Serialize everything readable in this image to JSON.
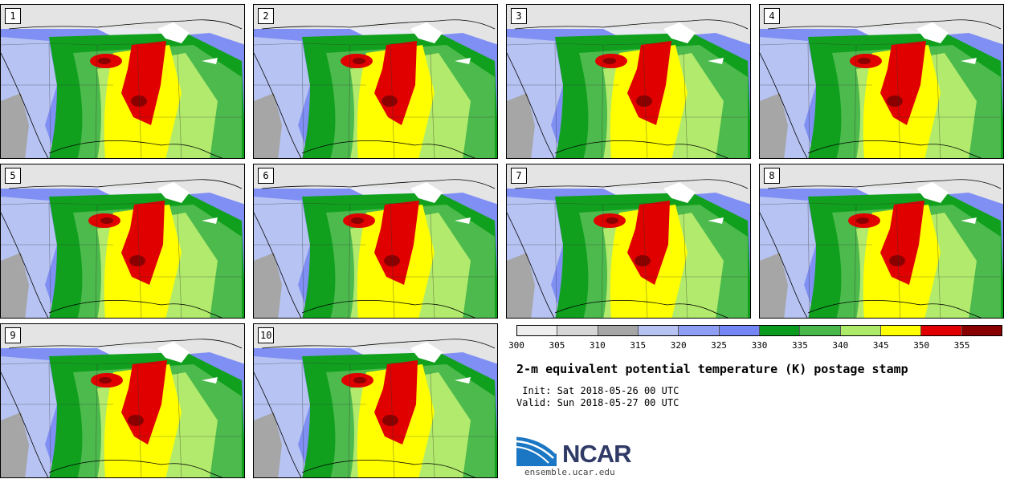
{
  "panels": [
    {
      "label": "1"
    },
    {
      "label": "2"
    },
    {
      "label": "3"
    },
    {
      "label": "4"
    },
    {
      "label": "5"
    },
    {
      "label": "6"
    },
    {
      "label": "7"
    },
    {
      "label": "8"
    },
    {
      "label": "9"
    },
    {
      "label": "10"
    }
  ],
  "colorbar": {
    "colors": [
      "#eeeeee",
      "#d6d6d6",
      "#a6a6a6",
      "#b5c2f2",
      "#8e9ef5",
      "#7486f3",
      "#0a9a1e",
      "#48b84a",
      "#aeea6a",
      "#ffff00",
      "#e00000",
      "#880000"
    ],
    "ticks": [
      "300",
      "305",
      "310",
      "315",
      "320",
      "325",
      "330",
      "335",
      "340",
      "345",
      "350",
      "355"
    ]
  },
  "title": "2-m equivalent potential temperature (K) postage stamp",
  "init": " Init: Sat 2018-05-26 00 UTC",
  "valid": "Valid: Sun 2018-05-27 00 UTC",
  "logo": {
    "name": "NCAR",
    "url": "ensemble.ucar.edu"
  }
}
